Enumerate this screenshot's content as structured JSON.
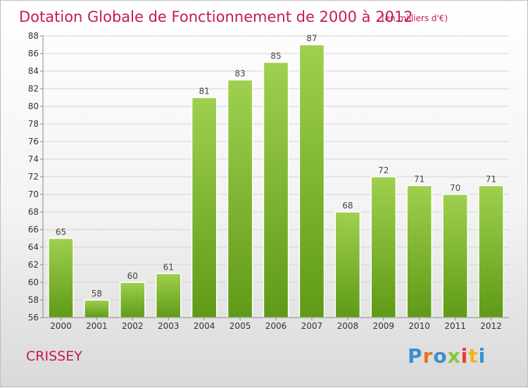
{
  "chart_data": {
    "type": "bar",
    "title": "Dotation Globale de Fonctionnement de 2000 à 2012",
    "subtitle": "(en milliers d'€)",
    "categories": [
      "2000",
      "2001",
      "2002",
      "2003",
      "2004",
      "2005",
      "2006",
      "2007",
      "2008",
      "2009",
      "2010",
      "2011",
      "2012"
    ],
    "values": [
      65,
      58,
      60,
      61,
      81,
      83,
      85,
      87,
      68,
      72,
      71,
      70,
      71
    ],
    "ylim": [
      56,
      88
    ],
    "yticks": [
      56,
      58,
      60,
      62,
      64,
      66,
      68,
      70,
      72,
      74,
      76,
      78,
      80,
      82,
      84,
      86,
      88
    ],
    "grid": true,
    "bar_color": "#7ab82e",
    "xlabel": "",
    "ylabel": ""
  },
  "footer": {
    "city": "CRISSEY",
    "logo": "Proxiti",
    "logo_colors": [
      "#3b8fd0",
      "#e8731a",
      "#3b8fd0",
      "#8bc53f",
      "#e83a2c",
      "#f2b51a",
      "#3b8fd0"
    ]
  }
}
